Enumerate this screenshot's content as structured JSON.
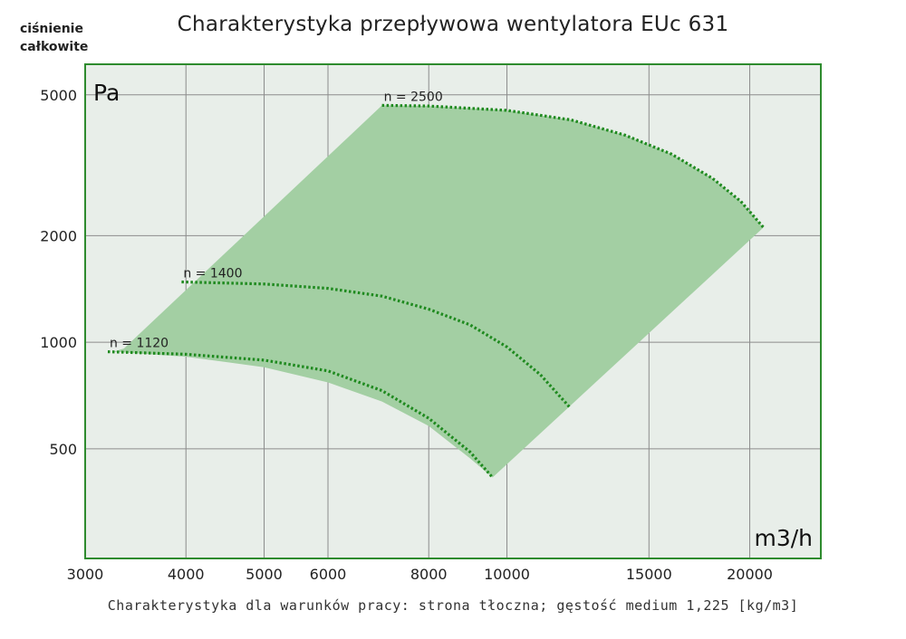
{
  "chart_data": {
    "type": "area",
    "title": "Charakterystyka przepływowa wentylatora EUc 631",
    "ylabel_lines": [
      "ciśnienie",
      "całkowite"
    ],
    "y_unit": "Pa",
    "x_unit": "m3/h",
    "footnote": "Charakterystyka dla warunków pracy: strona tłoczna; gęstość medium 1,225 [kg/m3]",
    "x_scale": "log",
    "y_scale": "log",
    "xlim": [
      3000,
      24500
    ],
    "ylim": [
      245,
      6100
    ],
    "x_ticks": [
      3000,
      4000,
      5000,
      6000,
      8000,
      10000,
      15000,
      20000
    ],
    "x_tick_labels": [
      "3000",
      "4000",
      "5000",
      "6000",
      "8000",
      "10000",
      "15000",
      "20000"
    ],
    "y_ticks": [
      500,
      1000,
      2000,
      5000
    ],
    "y_tick_labels": [
      "500",
      "1000",
      "2000",
      "5000"
    ],
    "grid": true,
    "colors": {
      "plot_background": "#e8eee9",
      "frame": "#2e8b2e",
      "operating_area": "#a3cfa3",
      "curve": "#1f8a1f",
      "grid": "#8c8c8c"
    },
    "operating_area": [
      {
        "x": 3250,
        "y": 940
      },
      {
        "x": 3350,
        "y": 960
      },
      {
        "x": 7000,
        "y": 4670
      },
      {
        "x": 8000,
        "y": 4650
      },
      {
        "x": 10000,
        "y": 4520
      },
      {
        "x": 12000,
        "y": 4250
      },
      {
        "x": 14000,
        "y": 3850
      },
      {
        "x": 16000,
        "y": 3400
      },
      {
        "x": 18000,
        "y": 2900
      },
      {
        "x": 19500,
        "y": 2500
      },
      {
        "x": 20800,
        "y": 2110
      },
      {
        "x": 9600,
        "y": 415
      },
      {
        "x": 9000,
        "y": 470
      },
      {
        "x": 8000,
        "y": 580
      },
      {
        "x": 7000,
        "y": 680
      },
      {
        "x": 6000,
        "y": 770
      },
      {
        "x": 5000,
        "y": 850
      },
      {
        "x": 4000,
        "y": 910
      }
    ],
    "series": [
      {
        "name": "n = 1120",
        "points": [
          {
            "x": 3200,
            "y": 940
          },
          {
            "x": 4000,
            "y": 925
          },
          {
            "x": 5000,
            "y": 890
          },
          {
            "x": 6000,
            "y": 830
          },
          {
            "x": 7000,
            "y": 730
          },
          {
            "x": 8000,
            "y": 610
          },
          {
            "x": 9000,
            "y": 490
          },
          {
            "x": 9600,
            "y": 415
          }
        ]
      },
      {
        "name": "n = 1400",
        "points": [
          {
            "x": 3950,
            "y": 1480
          },
          {
            "x": 5000,
            "y": 1460
          },
          {
            "x": 6000,
            "y": 1420
          },
          {
            "x": 7000,
            "y": 1350
          },
          {
            "x": 8000,
            "y": 1240
          },
          {
            "x": 9000,
            "y": 1120
          },
          {
            "x": 10000,
            "y": 970
          },
          {
            "x": 11000,
            "y": 810
          },
          {
            "x": 12000,
            "y": 650
          }
        ]
      },
      {
        "name": "n = 2500",
        "points": [
          {
            "x": 7000,
            "y": 4670
          },
          {
            "x": 8000,
            "y": 4650
          },
          {
            "x": 10000,
            "y": 4520
          },
          {
            "x": 12000,
            "y": 4250
          },
          {
            "x": 14000,
            "y": 3850
          },
          {
            "x": 16000,
            "y": 3400
          },
          {
            "x": 18000,
            "y": 2900
          },
          {
            "x": 19500,
            "y": 2500
          },
          {
            "x": 20800,
            "y": 2110
          }
        ]
      }
    ]
  }
}
